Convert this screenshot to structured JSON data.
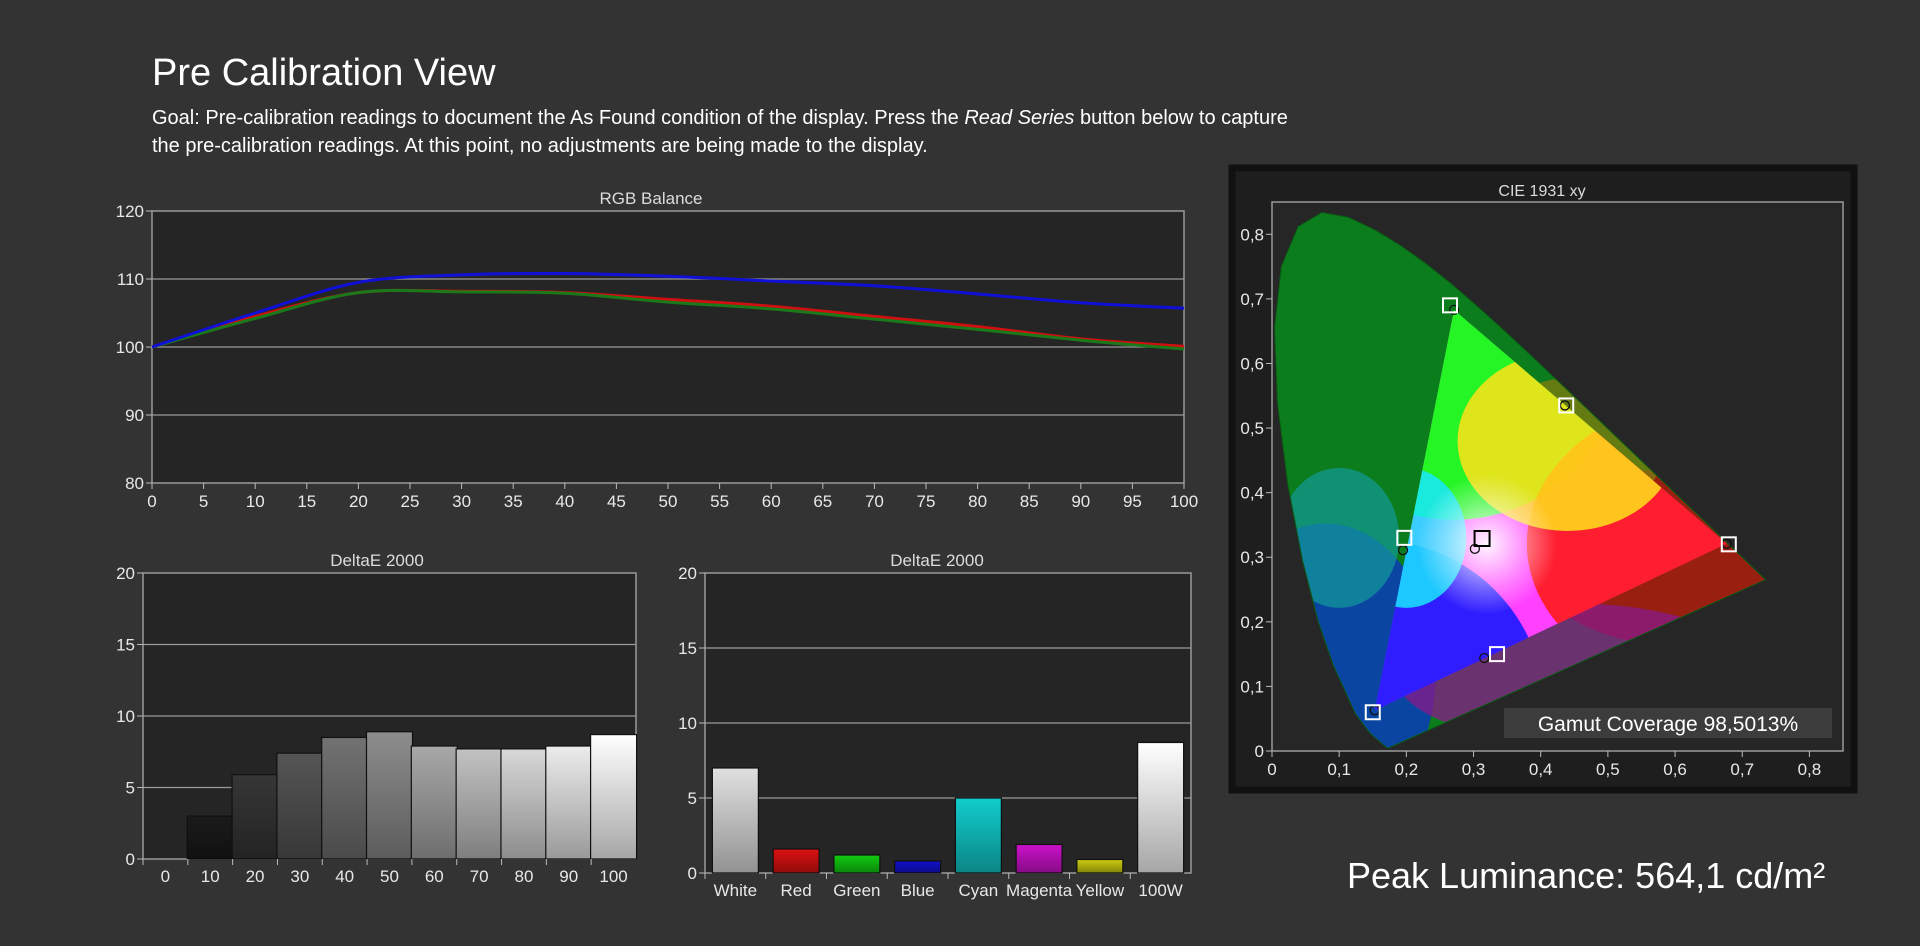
{
  "header": {
    "title": "Pre Calibration View",
    "goal_prefix": "Goal: Pre-calibration readings to document the As Found condition of the display. Press the ",
    "goal_button_name": "Read Series",
    "goal_suffix": " button below to capture the pre-calibration readings. At this point, no adjustments are being made to the display."
  },
  "peak_luminance": "Peak Luminance: 564,1 cd/m²",
  "colors": {
    "background": "#333333",
    "plot_bg": "#252525",
    "red": "#d01010",
    "green": "#1a7a1a",
    "blue": "#1010d8"
  },
  "chart_data": [
    {
      "id": "rgb-balance",
      "type": "line",
      "title": "RGB Balance",
      "x": [
        0,
        10,
        20,
        30,
        40,
        50,
        60,
        70,
        80,
        90,
        100
      ],
      "x_ticks": [
        "0",
        "5",
        "10",
        "15",
        "20",
        "25",
        "30",
        "35",
        "40",
        "45",
        "50",
        "55",
        "60",
        "65",
        "70",
        "75",
        "80",
        "85",
        "90",
        "95",
        "100"
      ],
      "xlim": [
        0,
        100
      ],
      "ylim": [
        80,
        120
      ],
      "y_ticks": [
        "80",
        "90",
        "100",
        "110",
        "120"
      ],
      "grid": true,
      "series": [
        {
          "color": "#d01010",
          "values": [
            100,
            104.5,
            108,
            108.2,
            108,
            107,
            106,
            104.5,
            103,
            101.2,
            100.1
          ]
        },
        {
          "color": "#1a7a1a",
          "values": [
            100,
            104.2,
            108,
            108.1,
            107.9,
            106.6,
            105.6,
            104.1,
            102.6,
            101,
            99.7
          ]
        },
        {
          "color": "#1010d8",
          "values": [
            100,
            105,
            109.5,
            110.6,
            110.8,
            110.4,
            109.7,
            109,
            107.8,
            106.5,
            105.7
          ]
        }
      ]
    },
    {
      "id": "deltae-grayscale",
      "type": "bar",
      "title": "DeltaE 2000",
      "categories": [
        "0",
        "10",
        "20",
        "30",
        "40",
        "50",
        "60",
        "70",
        "80",
        "90",
        "100"
      ],
      "values": [
        0,
        3.0,
        5.9,
        7.4,
        8.5,
        8.9,
        7.9,
        7.7,
        7.7,
        7.9,
        8.7
      ],
      "bar_colors": [
        "#000000",
        "#1a1a1a",
        "#363636",
        "#555555",
        "#727272",
        "#8d8d8d",
        "#a8a8a8",
        "#c2c2c2",
        "#d8d8d8",
        "#ececec",
        "#ffffff"
      ],
      "ylim": [
        0,
        20
      ],
      "y_ticks": [
        "0",
        "5",
        "10",
        "15",
        "20"
      ],
      "grid": true
    },
    {
      "id": "deltae-colors",
      "type": "bar",
      "title": "DeltaE 2000",
      "categories": [
        "White",
        "Red",
        "Green",
        "Blue",
        "Cyan",
        "Magenta",
        "Yellow",
        "100W"
      ],
      "values": [
        7.0,
        1.6,
        1.2,
        0.8,
        5.0,
        1.9,
        0.9,
        8.7
      ],
      "bar_colors": [
        "#e0e0e0",
        "#dd1111",
        "#11cc11",
        "#1111cc",
        "#11cccc",
        "#cc11cc",
        "#cccc11",
        "#ffffff"
      ],
      "ylim": [
        0,
        20
      ],
      "y_ticks": [
        "0",
        "5",
        "10",
        "15",
        "20"
      ],
      "grid": true
    },
    {
      "id": "cie-1931",
      "type": "scatter",
      "title": "CIE 1931 xy",
      "xlim": [
        0,
        0.85
      ],
      "ylim": [
        0,
        0.85
      ],
      "x_ticks": [
        "0",
        "0,1",
        "0,2",
        "0,3",
        "0,4",
        "0,5",
        "0,6",
        "0,7",
        "0,8"
      ],
      "y_ticks": [
        "0",
        "0,1",
        "0,2",
        "0,3",
        "0,4",
        "0,5",
        "0,6",
        "0,7",
        "0,8"
      ],
      "targets": [
        {
          "label": "red",
          "x": 0.68,
          "y": 0.32
        },
        {
          "label": "green",
          "x": 0.265,
          "y": 0.69
        },
        {
          "label": "blue",
          "x": 0.15,
          "y": 0.06
        },
        {
          "label": "cyan",
          "x": 0.197,
          "y": 0.33
        },
        {
          "label": "magenta",
          "x": 0.335,
          "y": 0.15
        },
        {
          "label": "yellow",
          "x": 0.438,
          "y": 0.535
        },
        {
          "label": "white",
          "x": 0.3127,
          "y": 0.329
        }
      ],
      "measured": [
        {
          "label": "red",
          "x": 0.677,
          "y": 0.321
        },
        {
          "label": "green",
          "x": 0.271,
          "y": 0.683
        },
        {
          "label": "blue",
          "x": 0.153,
          "y": 0.063
        },
        {
          "label": "cyan",
          "x": 0.195,
          "y": 0.311
        },
        {
          "label": "magenta",
          "x": 0.316,
          "y": 0.144
        },
        {
          "label": "yellow",
          "x": 0.436,
          "y": 0.535
        },
        {
          "label": "white",
          "x": 0.302,
          "y": 0.313
        }
      ],
      "gamut_coverage": "Gamut Coverage 98,5013%"
    }
  ]
}
